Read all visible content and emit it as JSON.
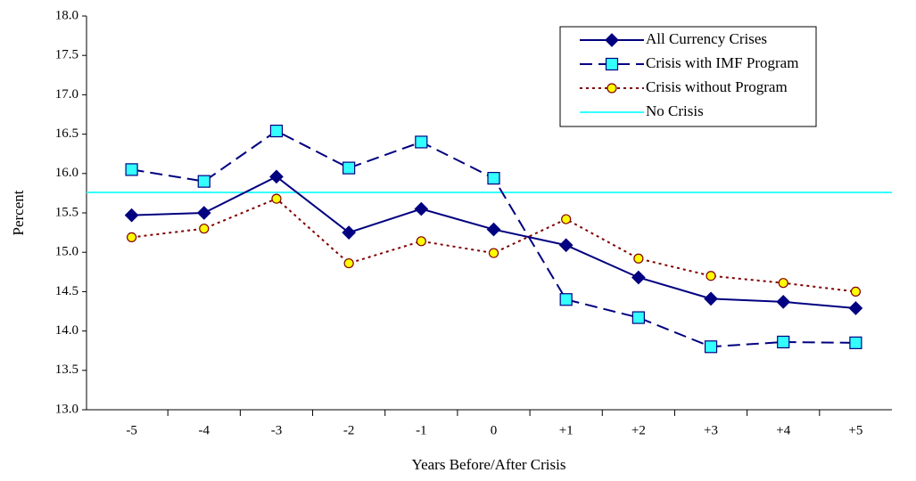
{
  "chart_data": {
    "type": "line",
    "x_label": "Years Before/After Crisis",
    "y_label": "Percent",
    "categories": [
      "-5",
      "-4",
      "-3",
      "-2",
      "-1",
      "0",
      "+1",
      "+2",
      "+3",
      "+4",
      "+5"
    ],
    "series": [
      {
        "name": "All Currency Crises",
        "color": "#000080",
        "line_style": "solid",
        "marker": "diamond",
        "marker_color": "#000080",
        "values": [
          15.47,
          15.5,
          15.96,
          15.25,
          15.55,
          15.29,
          15.09,
          14.68,
          14.41,
          14.37,
          14.29
        ]
      },
      {
        "name": "Crisis with IMF Program",
        "color": "#000080",
        "line_style": "dashed",
        "marker": "square",
        "marker_color": "#33ffff",
        "values": [
          16.05,
          15.9,
          16.54,
          16.07,
          16.4,
          15.94,
          14.4,
          14.17,
          13.8,
          13.86,
          13.85
        ]
      },
      {
        "name": "Crisis without Program",
        "color": "#800000",
        "line_style": "dotted",
        "marker": "circle",
        "marker_color": "#ffff00",
        "values": [
          15.19,
          15.3,
          15.68,
          14.86,
          15.14,
          14.99,
          15.42,
          14.92,
          14.7,
          14.61,
          14.5
        ]
      }
    ],
    "reference_line": {
      "name": "No Crisis",
      "value": 15.76,
      "color": "#33ffff"
    },
    "ylim": [
      13,
      18
    ],
    "yticks": [
      {
        "value": 13,
        "label": "13.0"
      },
      {
        "value": 13.5,
        "label": "13.5"
      },
      {
        "value": 14,
        "label": "14.0"
      },
      {
        "value": 14.5,
        "label": "14.5"
      },
      {
        "value": 15,
        "label": "15.0"
      },
      {
        "value": 15.5,
        "label": "15.5"
      },
      {
        "value": 16,
        "label": "16.0"
      },
      {
        "value": 16.5,
        "label": "16.5"
      },
      {
        "value": 17,
        "label": "17.0"
      },
      {
        "value": 17.5,
        "label": "17.5"
      },
      {
        "value": 18,
        "label": "18.0"
      }
    ],
    "grid": false,
    "legend_position": "upper right"
  }
}
